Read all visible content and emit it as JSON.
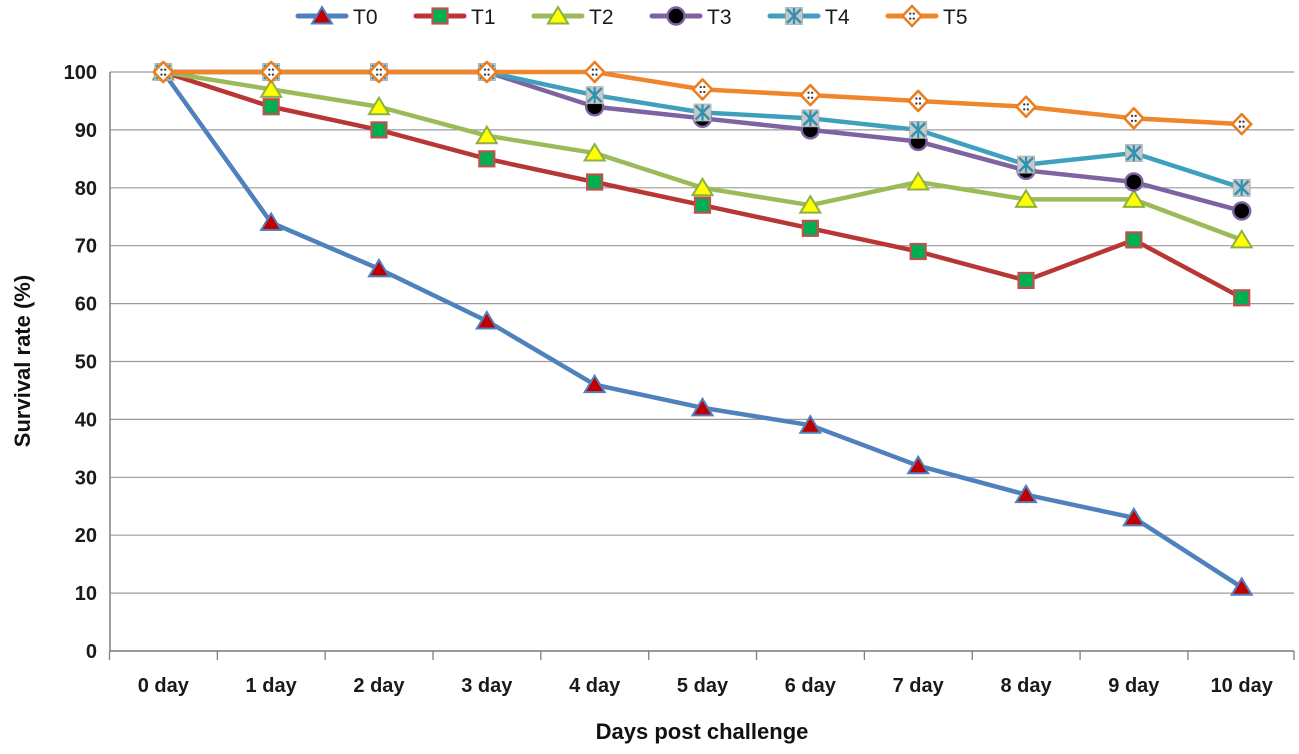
{
  "chart_data": {
    "type": "line",
    "title": "",
    "xlabel": "Days post challenge",
    "ylabel": "Survival rate (%)",
    "categories": [
      "0 day",
      "1 day",
      "2 day",
      "3 day",
      "4 day",
      "5 day",
      "6 day",
      "7 day",
      "8 day",
      "9 day",
      "10 day"
    ],
    "ylim": [
      0,
      100
    ],
    "yticks": [
      0,
      10,
      20,
      30,
      40,
      50,
      60,
      70,
      80,
      90,
      100
    ],
    "grid": "horizontal",
    "legend_position": "top-center",
    "axis_color": "#808080",
    "gridline_color": "#9B9B9B",
    "series": [
      {
        "name": "T0",
        "marker": "triangle",
        "line_color": "#4F81BD",
        "marker_fill": "#C00000",
        "marker_edge": "#4F81BD",
        "values": [
          100,
          74,
          66,
          57,
          46,
          42,
          39,
          32,
          27,
          23,
          11
        ]
      },
      {
        "name": "T1",
        "marker": "square",
        "line_color": "#B83734",
        "marker_fill": "#00B050",
        "marker_edge": "#C0504D",
        "values": [
          100,
          94,
          90,
          85,
          81,
          77,
          73,
          69,
          64,
          71,
          61
        ]
      },
      {
        "name": "T2",
        "marker": "triangle",
        "line_color": "#9BBB59",
        "marker_fill": "#FFFF00",
        "marker_edge": "#8FAF46",
        "values": [
          100,
          97,
          94,
          89,
          86,
          80,
          77,
          81,
          78,
          78,
          71
        ]
      },
      {
        "name": "T3",
        "marker": "circle",
        "line_color": "#7E62A1",
        "marker_fill": "#000000",
        "marker_edge": "#7E62A1",
        "values": [
          100,
          100,
          100,
          100,
          94,
          92,
          90,
          88,
          83,
          81,
          76
        ]
      },
      {
        "name": "T4",
        "marker": "x-square",
        "line_color": "#3FA0BE",
        "marker_fill": "#C8C8C8",
        "marker_edge": "#2F93B0",
        "values": [
          100,
          100,
          100,
          100,
          96,
          93,
          92,
          90,
          84,
          86,
          80
        ]
      },
      {
        "name": "T5",
        "marker": "diamond-dot",
        "line_color": "#F0862B",
        "marker_fill": "#FFFFFF",
        "marker_edge": "#E97F1F",
        "values": [
          100,
          100,
          100,
          100,
          100,
          97,
          96,
          95,
          94,
          92,
          91
        ]
      }
    ]
  }
}
